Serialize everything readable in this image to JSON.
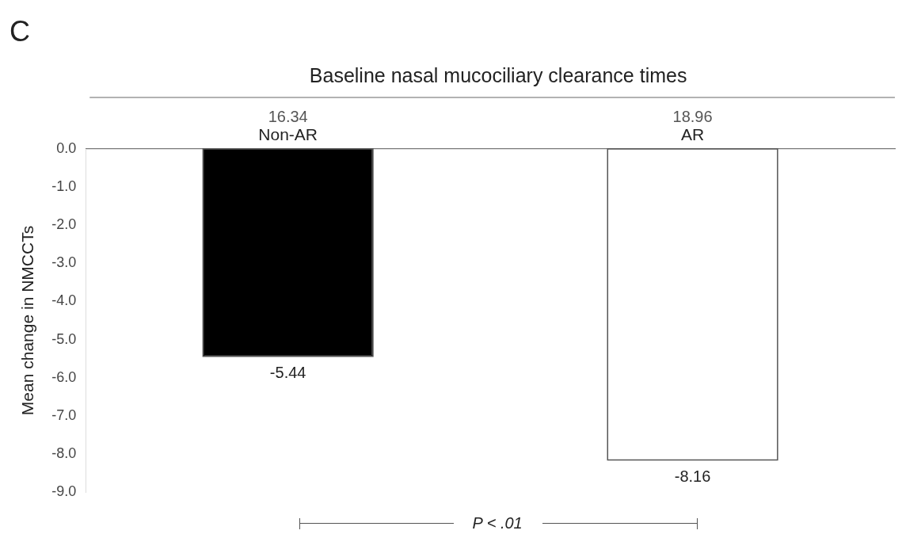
{
  "chart_data": {
    "type": "bar",
    "title": "Baseline nasal mucociliary clearance times",
    "ylabel": "Mean change in NMCCTs",
    "categories": [
      "Non-AR",
      "AR"
    ],
    "values": [
      -5.44,
      -8.16
    ],
    "colors": [
      "#000000",
      "#ffffff"
    ],
    "ylim": [
      -9,
      0
    ],
    "yticks": [
      {
        "value": 0,
        "label": "0.0"
      },
      {
        "value": -1,
        "label": "-1.0"
      },
      {
        "value": -2,
        "label": "-2.0"
      },
      {
        "value": -3,
        "label": "-3.0"
      },
      {
        "value": -4,
        "label": "-4.0"
      },
      {
        "value": -5,
        "label": "-5.0"
      },
      {
        "value": -6,
        "label": "-6.0"
      },
      {
        "value": -7,
        "label": "-7.0"
      },
      {
        "value": -8,
        "label": "-8.0"
      },
      {
        "value": -9,
        "label": "-9.0"
      }
    ],
    "grid": false,
    "legend": false,
    "data_labels": true,
    "annotations": [
      "C",
      "16.34",
      "18.96",
      "P < .01"
    ]
  }
}
